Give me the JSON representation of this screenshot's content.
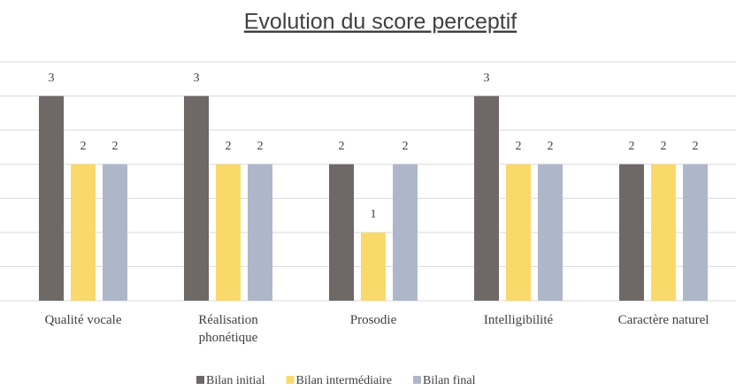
{
  "chart_data": {
    "type": "bar",
    "title": "Evolution du score perceptif",
    "categories": [
      "Qualité vocale",
      "Réalisation phonétique",
      "Prosodie",
      "Intelligibilité",
      "Caractère naturel"
    ],
    "series": [
      {
        "name": "Bilan initial",
        "color": "#6e6867",
        "values": [
          3,
          3,
          2,
          3,
          2
        ]
      },
      {
        "name": "Bilan intermédiaire",
        "color": "#fad96b",
        "values": [
          2,
          2,
          1,
          2,
          2
        ]
      },
      {
        "name": "Bilan final",
        "color": "#aeb7c9",
        "values": [
          2,
          2,
          2,
          2,
          2
        ]
      }
    ],
    "ylim": [
      0,
      3.5
    ],
    "yticks": [
      0,
      0.5,
      1,
      1.5,
      2,
      2.5,
      3,
      3.5
    ],
    "grid": true,
    "legend": "bottom"
  }
}
